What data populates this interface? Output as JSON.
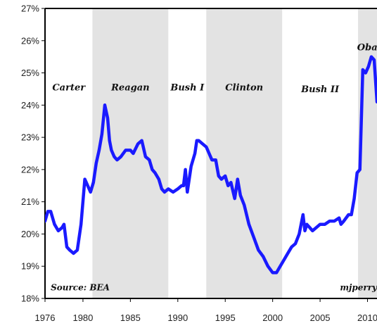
{
  "chart_data": {
    "type": "line",
    "title": "",
    "xlabel": "",
    "ylabel": "",
    "xlim": [
      1976,
      2011
    ],
    "ylim": [
      18,
      27
    ],
    "x_ticks": [
      1976,
      1980,
      1985,
      1990,
      1995,
      2000,
      2005,
      2010
    ],
    "x_tick_labels": [
      "1976",
      "1980",
      "1985",
      "1990",
      "1995",
      "2000",
      "2005",
      "2010"
    ],
    "y_ticks": [
      18,
      19,
      20,
      21,
      22,
      23,
      24,
      25,
      26,
      27
    ],
    "y_tick_labels": [
      "18%",
      "19%",
      "20%",
      "21%",
      "22%",
      "23%",
      "24%",
      "25%",
      "26%",
      "27%"
    ],
    "grid": false,
    "line_color": "#1a1aff",
    "shade_color": "#e3e3e3",
    "shaded_periods": [
      {
        "start": 1981.0,
        "end": 1989.0
      },
      {
        "start": 1993.0,
        "end": 2001.0
      },
      {
        "start": 2009.0,
        "end": 2011.0
      }
    ],
    "period_labels": [
      {
        "text": "Carter",
        "x": 1978.5,
        "y": 24.45
      },
      {
        "text": "Reagan",
        "x": 1985.0,
        "y": 24.45
      },
      {
        "text": "Bush I",
        "x": 1991.0,
        "y": 24.45
      },
      {
        "text": "Clinton",
        "x": 1997.0,
        "y": 24.45
      },
      {
        "text": "Bush II",
        "x": 2005.0,
        "y": 24.4
      },
      {
        "text": "Obama",
        "x": 2010.8,
        "y": 25.7
      }
    ],
    "annotations": [
      {
        "text": "Source: BEA",
        "x": 1976.6,
        "y": 18.25,
        "anchor": "start"
      },
      {
        "text": "mjperry",
        "x": 2011,
        "y": 18.25,
        "anchor": "end"
      }
    ],
    "series": [
      {
        "x": [
          1976.0,
          1976.3,
          1976.6,
          1977.0,
          1977.4,
          1977.8,
          1978.0,
          1978.3,
          1978.6,
          1979.0,
          1979.4,
          1979.8,
          1980.2,
          1980.5,
          1980.8,
          1981.1,
          1981.4,
          1981.7,
          1982.0,
          1982.3,
          1982.6,
          1982.8,
          1983.0,
          1983.3,
          1983.6,
          1984.0,
          1984.5,
          1985.0,
          1985.3,
          1985.8,
          1986.2,
          1986.6,
          1987.0,
          1987.3,
          1987.6,
          1988.0,
          1988.3,
          1988.6,
          1989.0,
          1989.5,
          1990.0,
          1990.4,
          1990.6,
          1990.8,
          1991.0,
          1991.4,
          1991.8,
          1992.0,
          1992.2,
          1992.6,
          1993.0,
          1993.3,
          1993.6,
          1994.0,
          1994.3,
          1994.6,
          1995.0,
          1995.3,
          1995.6,
          1996.0,
          1996.3,
          1996.6,
          1997.0,
          1997.5,
          1998.0,
          1998.5,
          1999.0,
          1999.5,
          2000.0,
          2000.4,
          2000.8,
          2001.2,
          2001.6,
          2002.0,
          2002.4,
          2002.8,
          2003.2,
          2003.4,
          2003.6,
          2003.9,
          2004.2,
          2004.6,
          2005.0,
          2005.5,
          2006.0,
          2006.5,
          2007.0,
          2007.2,
          2007.5,
          2008.0,
          2008.3,
          2008.6,
          2008.9,
          2009.2,
          2009.5,
          2009.8,
          2010.1,
          2010.4,
          2010.7,
          2011.0
        ],
        "y": [
          20.4,
          20.7,
          20.7,
          20.3,
          20.1,
          20.2,
          20.3,
          19.6,
          19.5,
          19.4,
          19.5,
          20.3,
          21.7,
          21.5,
          21.3,
          21.6,
          22.2,
          22.6,
          23.1,
          24.0,
          23.6,
          22.9,
          22.6,
          22.4,
          22.3,
          22.4,
          22.6,
          22.6,
          22.5,
          22.8,
          22.9,
          22.4,
          22.3,
          22.0,
          21.9,
          21.7,
          21.4,
          21.3,
          21.4,
          21.3,
          21.4,
          21.5,
          21.5,
          22.0,
          21.3,
          22.1,
          22.5,
          22.9,
          22.9,
          22.8,
          22.7,
          22.5,
          22.3,
          22.3,
          21.8,
          21.7,
          21.8,
          21.5,
          21.6,
          21.1,
          21.7,
          21.2,
          20.9,
          20.3,
          19.9,
          19.5,
          19.3,
          19.0,
          18.8,
          18.8,
          19.0,
          19.2,
          19.4,
          19.6,
          19.7,
          20.0,
          20.6,
          20.1,
          20.3,
          20.2,
          20.1,
          20.2,
          20.3,
          20.3,
          20.4,
          20.4,
          20.5,
          20.3,
          20.4,
          20.6,
          20.6,
          21.1,
          21.9,
          22.0,
          25.1,
          25.0,
          25.2,
          25.5,
          25.4,
          24.1
        ]
      }
    ]
  }
}
